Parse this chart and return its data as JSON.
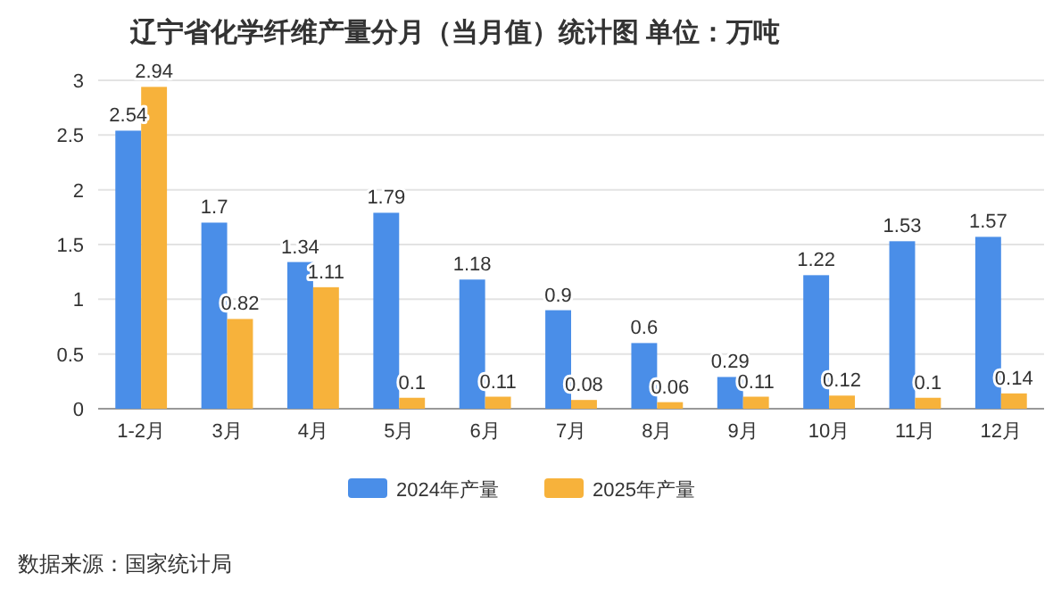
{
  "chart_data": {
    "type": "bar",
    "title": "辽宁省化学纤维产量分月（当月值）统计图 单位：万吨",
    "categories": [
      "1-2月",
      "3月",
      "4月",
      "5月",
      "6月",
      "7月",
      "8月",
      "9月",
      "10月",
      "11月",
      "12月"
    ],
    "series": [
      {
        "name": "2024年产量",
        "color": "#4a8ee8",
        "values": [
          2.54,
          1.7,
          1.34,
          1.79,
          1.18,
          0.9,
          0.6,
          0.29,
          1.22,
          1.53,
          1.57
        ]
      },
      {
        "name": "2025年产量",
        "color": "#f7b23b",
        "values": [
          2.94,
          0.82,
          1.11,
          0.1,
          0.11,
          0.08,
          0.06,
          0.11,
          0.12,
          0.1,
          0.14
        ]
      }
    ],
    "ylim": [
      0,
      3
    ],
    "yticks": [
      0,
      0.5,
      1,
      1.5,
      2,
      2.5,
      3
    ],
    "grid": "y",
    "legend": "bottom",
    "data_labels": true,
    "annotations": [
      "数据来源：国家统计局"
    ]
  }
}
